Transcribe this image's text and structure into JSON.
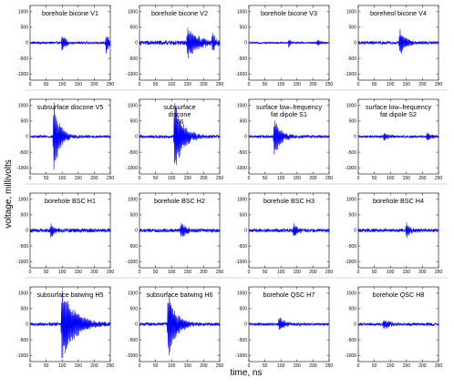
{
  "chart_data": {
    "type": "line",
    "xlabel": "time, ns",
    "ylabel": "voltage, millivolts",
    "xlim": [
      0,
      250
    ],
    "ylim": [
      -1200,
      1200
    ],
    "x_ticks": [
      0,
      50,
      100,
      150,
      200,
      250
    ],
    "y_ticks": [
      1000,
      500,
      0,
      -500,
      -1000
    ],
    "line_color": "#0000ff",
    "panels": [
      {
        "title": "borehole bicone V1",
        "events": [
          {
            "t": 100,
            "amp": 300,
            "dur": 12
          },
          {
            "t": 238,
            "amp": 420,
            "dur": 8
          }
        ],
        "noise": 40
      },
      {
        "title": "borehole bicone V2",
        "events": [
          {
            "t": 150,
            "amp": 580,
            "dur": 35
          },
          {
            "t": 228,
            "amp": 520,
            "dur": 10
          }
        ],
        "noise": 70
      },
      {
        "title": "borehole bicone V3",
        "events": [
          {
            "t": 125,
            "amp": 160,
            "dur": 8
          },
          {
            "t": 215,
            "amp": 120,
            "dur": 8
          }
        ],
        "noise": 30
      },
      {
        "title": "boreheol bicone V4",
        "events": [
          {
            "t": 130,
            "amp": 480,
            "dur": 18
          }
        ],
        "noise": 50
      },
      {
        "title": "subsurface discone V5",
        "events": [
          {
            "t": 75,
            "amp": 1250,
            "dur": 18
          }
        ],
        "noise": 45
      },
      {
        "title": "subsurface\ndiscone\nV6",
        "events": [
          {
            "t": 110,
            "amp": 1250,
            "dur": 25
          }
        ],
        "noise": 50
      },
      {
        "title": "surface low–frequency\nfat dipole S1",
        "events": [
          {
            "t": 80,
            "amp": 700,
            "dur": 20
          }
        ],
        "noise": 45
      },
      {
        "title": "surface low–frequency\nfat dipole S2",
        "events": [
          {
            "t": 80,
            "amp": 140,
            "dur": 15
          },
          {
            "t": 215,
            "amp": 150,
            "dur": 12
          }
        ],
        "noise": 40
      },
      {
        "title": "borehole BSC H1",
        "events": [
          {
            "t": 65,
            "amp": 260,
            "dur": 12
          }
        ],
        "noise": 60
      },
      {
        "title": "borehole BSC H2",
        "events": [
          {
            "t": 130,
            "amp": 320,
            "dur": 14
          }
        ],
        "noise": 60
      },
      {
        "title": "borehole BSC H3",
        "events": [
          {
            "t": 140,
            "amp": 250,
            "dur": 14
          }
        ],
        "noise": 55
      },
      {
        "title": "borehole BSC H4",
        "events": [
          {
            "t": 150,
            "amp": 260,
            "dur": 14
          }
        ],
        "noise": 55
      },
      {
        "title": "subsurface batwing H5",
        "events": [
          {
            "t": 100,
            "amp": 1300,
            "dur": 40
          }
        ],
        "noise": 50
      },
      {
        "title": "subsurface batwing H6",
        "events": [
          {
            "t": 90,
            "amp": 1150,
            "dur": 25
          }
        ],
        "noise": 50
      },
      {
        "title": "borehole QSC H7",
        "events": [
          {
            "t": 95,
            "amp": 230,
            "dur": 20
          }
        ],
        "noise": 45
      },
      {
        "title": "borehole QSC H8",
        "events": [
          {
            "t": 80,
            "amp": 200,
            "dur": 18
          }
        ],
        "noise": 45
      }
    ]
  }
}
